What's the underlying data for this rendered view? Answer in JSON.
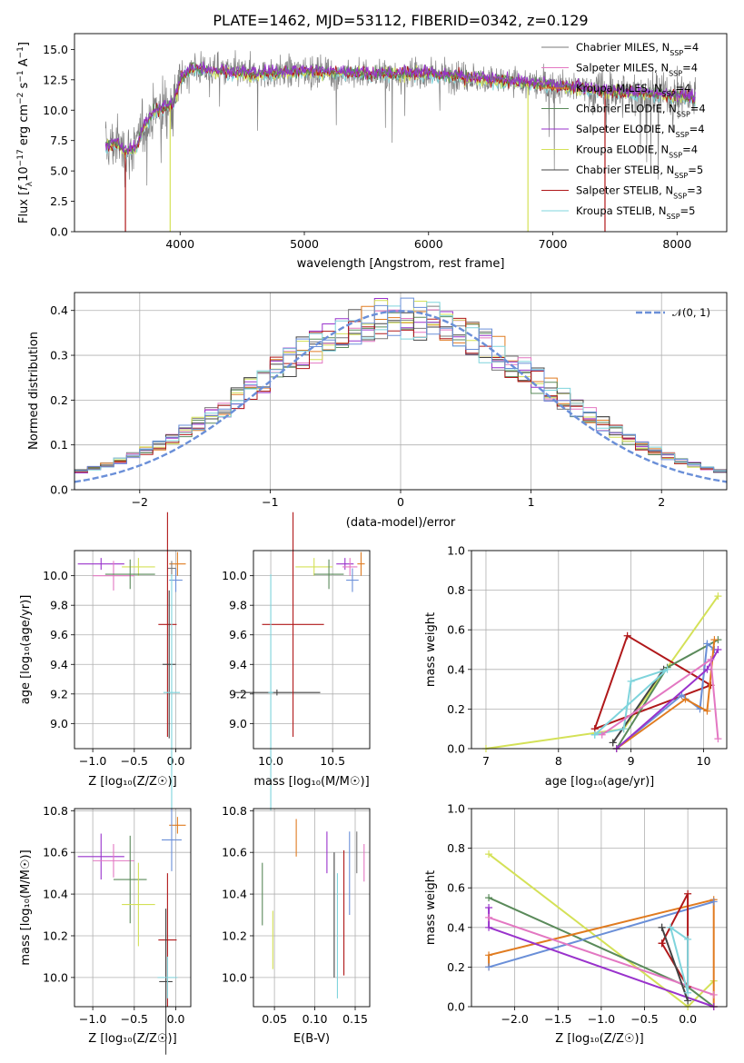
{
  "colors": {
    "chabrier_miles": "#7a7a7a",
    "salpeter_miles": "#e377c2",
    "kroupa_miles": "#e07b20",
    "chabrier_elodie": "#5a8a5a",
    "salpeter_elodie": "#9932cc",
    "kroupa_elodie": "#d4e157",
    "chabrier_stelib": "#444444",
    "salpeter_stelib": "#b0181a",
    "kroupa_stelib": "#7fd4dc",
    "miles_blue": "#6a8fd8",
    "normal": "#6a8fd8"
  },
  "chart_data": [
    {
      "id": "spectrum",
      "type": "line",
      "title": "PLATE=1462, MJD=53112, FIBERID=0342, z=0.129",
      "xlabel": "wavelength [Angstrom, rest frame]",
      "ylabel": "Flux [f_λ10^-17 erg cm^-2 s^-1 A^-1]",
      "xlim": [
        3150,
        8400
      ],
      "ylim": [
        0,
        16.3
      ],
      "xticks": [
        "4000",
        "5000",
        "6000",
        "7000",
        "8000"
      ],
      "yticks": [
        "0.0",
        "2.5",
        "5.0",
        "7.5",
        "10.0",
        "12.5",
        "15.0"
      ],
      "grid": false,
      "legend_position": "right",
      "series": [
        {
          "name": "Chabrier MILES, N_SSP=4",
          "color_key": "chabrier_miles"
        },
        {
          "name": "Salpeter MILES, N_SSP=4",
          "color_key": "salpeter_miles"
        },
        {
          "name": "Kroupa MILES, N_SSP=4",
          "color_key": "kroupa_miles"
        },
        {
          "name": "Chabrier ELODIE, N_SSP=4",
          "color_key": "chabrier_elodie"
        },
        {
          "name": "Salpeter ELODIE, N_SSP=4",
          "color_key": "salpeter_elodie"
        },
        {
          "name": "Kroupa ELODIE, N_SSP=4",
          "color_key": "kroupa_elodie"
        },
        {
          "name": "Chabrier STELIB, N_SSP=5",
          "color_key": "chabrier_stelib"
        },
        {
          "name": "Salpeter STELIB, N_SSP=3",
          "color_key": "salpeter_stelib"
        },
        {
          "name": "Kroupa STELIB, N_SSP=5",
          "color_key": "kroupa_stelib"
        }
      ],
      "continuum_knots": {
        "x": [
          3400,
          3500,
          3550,
          3650,
          3700,
          3800,
          3950,
          4000,
          4100,
          4300,
          4600,
          5000,
          5500,
          6000,
          6500,
          7000,
          7500,
          8000,
          8150
        ],
        "y": [
          7.0,
          7.3,
          6.5,
          7.0,
          8.5,
          10.0,
          10.5,
          12.5,
          13.5,
          13.2,
          13.0,
          13.2,
          13.0,
          13.0,
          12.5,
          12.0,
          11.5,
          11.2,
          11.0
        ]
      }
    },
    {
      "id": "residuals",
      "type": "bar",
      "xlabel": "(data-model)/error",
      "ylabel": "Normed distribution",
      "xlim": [
        -2.5,
        2.5
      ],
      "ylim": [
        0,
        0.44
      ],
      "xticks": [
        "−2",
        "−1",
        "0",
        "1",
        "2"
      ],
      "yticks": [
        "0.0",
        "0.1",
        "0.2",
        "0.3",
        "0.4"
      ],
      "grid": true,
      "legend_position": "top-right",
      "legend": "𝒩(0, 1)",
      "bin_width": 0.1,
      "reference_curve": "gaussian mean 0 sigma 1, peak 0.399"
    },
    {
      "id": "age_vs_Z",
      "type": "scatter",
      "xlabel": "Z [log10(Z/Z☉)]",
      "ylabel": "age [log10(age/yr)]",
      "xlim": [
        -1.22,
        0.18
      ],
      "ylim": [
        8.83,
        10.17
      ],
      "xticks": [
        "−1.0",
        "−0.5",
        "0.0"
      ],
      "yticks": [
        "9.0",
        "9.2",
        "9.4",
        "9.6",
        "9.8",
        "10.0"
      ],
      "grid": true,
      "points": [
        {
          "c": "salpeter_elodie",
          "x": -0.9,
          "xe": 0.28,
          "y": 10.08,
          "ye": 0.04
        },
        {
          "c": "salpeter_miles",
          "x": -0.75,
          "xe": 0.25,
          "y": 10.0,
          "ye": 0.1
        },
        {
          "c": "kroupa_elodie",
          "x": -0.45,
          "xe": 0.2,
          "y": 10.06,
          "ye": 0.06
        },
        {
          "c": "chabrier_elodie",
          "x": -0.55,
          "xe": 0.3,
          "y": 10.01,
          "ye": 0.1
        },
        {
          "c": "kroupa_miles",
          "x": 0.02,
          "xe": 0.1,
          "y": 10.08,
          "ye": 0.08
        },
        {
          "c": "miles_blue",
          "x": 0.0,
          "xe": 0.08,
          "y": 9.97,
          "ye": 0.08
        },
        {
          "c": "chabrier_miles",
          "x": -0.05,
          "xe": 0.05,
          "y": 10.05,
          "ye": 0.05
        },
        {
          "c": "salpeter_stelib",
          "x": -0.1,
          "xe": 0.11,
          "y": 9.67,
          "ye": 0.76
        },
        {
          "c": "chabrier_stelib",
          "x": -0.08,
          "xe": 0.08,
          "y": 9.4,
          "ye": 0.5
        },
        {
          "c": "kroupa_stelib",
          "x": -0.05,
          "xe": 0.1,
          "y": 9.21,
          "ye": 0.8
        }
      ]
    },
    {
      "id": "age_vs_mass",
      "type": "scatter",
      "xlabel": "mass [log10(M/M☉)]",
      "xlim": [
        9.86,
        10.8
      ],
      "ylim": [
        8.83,
        10.17
      ],
      "xticks": [
        "10.0",
        "10.5"
      ],
      "yticks": [
        "9.0",
        "9.2",
        "9.4",
        "9.6",
        "9.8",
        "10.0"
      ],
      "grid": true,
      "points": [
        {
          "c": "kroupa_elodie",
          "x": 10.35,
          "xe": 0.15,
          "y": 10.06,
          "ye": 0.06
        },
        {
          "c": "chabrier_elodie",
          "x": 10.47,
          "xe": 0.12,
          "y": 10.01,
          "ye": 0.1
        },
        {
          "c": "salpeter_elodie",
          "x": 10.6,
          "xe": 0.07,
          "y": 10.08,
          "ye": 0.04
        },
        {
          "c": "salpeter_miles",
          "x": 10.64,
          "xe": 0.06,
          "y": 10.06,
          "ye": 0.06
        },
        {
          "c": "kroupa_miles",
          "x": 10.73,
          "xe": 0.03,
          "y": 10.08,
          "ye": 0.08
        },
        {
          "c": "miles_blue",
          "x": 10.66,
          "xe": 0.05,
          "y": 9.97,
          "ye": 0.08
        },
        {
          "c": "chabrier_stelib",
          "x": 10.05,
          "xe": 0.35,
          "y": 9.21,
          "ye": 0.02
        },
        {
          "c": "salpeter_stelib",
          "x": 10.18,
          "xe": 0.25,
          "y": 9.67,
          "ye": 0.76
        },
        {
          "c": "kroupa_stelib",
          "x": 10.0,
          "xe": 0.02,
          "y": 9.21,
          "ye": 0.8
        }
      ]
    },
    {
      "id": "massweight_vs_age",
      "type": "line",
      "xlabel": "age [log10(age/yr)]",
      "ylabel": "mass weight",
      "xlim": [
        6.8,
        10.32
      ],
      "ylim": [
        0,
        1.0
      ],
      "xticks": [
        "7",
        "8",
        "9",
        "10"
      ],
      "yticks": [
        "0.0",
        "0.2",
        "0.4",
        "0.6",
        "0.8",
        "1.0"
      ],
      "grid": true,
      "series": [
        {
          "c": "kroupa_elodie",
          "x": [
            7.0,
            8.9,
            10.2
          ],
          "y": [
            0.0,
            0.1,
            0.77
          ]
        },
        {
          "c": "salpeter_stelib",
          "x": [
            8.5,
            8.95,
            10.1,
            8.5
          ],
          "y": [
            0.1,
            0.57,
            0.32,
            0.1
          ]
        },
        {
          "c": "chabrier_elodie",
          "x": [
            8.8,
            9.5,
            10.2
          ],
          "y": [
            0.0,
            0.41,
            0.55
          ]
        },
        {
          "c": "chabrier_stelib",
          "x": [
            8.75,
            9.45,
            8.75
          ],
          "y": [
            0.03,
            0.4,
            0.03
          ]
        },
        {
          "c": "kroupa_stelib",
          "x": [
            8.5,
            8.9,
            9.0,
            9.5,
            8.5
          ],
          "y": [
            0.07,
            0.1,
            0.34,
            0.4,
            0.07
          ]
        },
        {
          "c": "miles_blue",
          "x": [
            8.8,
            9.7,
            9.95,
            10.05,
            10.15
          ],
          "y": [
            0.0,
            0.27,
            0.2,
            0.53,
            0.5
          ]
        },
        {
          "c": "kroupa_miles",
          "x": [
            8.8,
            9.75,
            10.05,
            10.15
          ],
          "y": [
            0.0,
            0.25,
            0.19,
            0.55
          ]
        },
        {
          "c": "salpeter_elodie",
          "x": [
            8.8,
            10.05,
            10.2
          ],
          "y": [
            0.0,
            0.4,
            0.5
          ]
        },
        {
          "c": "salpeter_miles",
          "x": [
            8.6,
            10.1,
            10.2
          ],
          "y": [
            0.07,
            0.45,
            0.05
          ]
        }
      ]
    },
    {
      "id": "mass_vs_Z",
      "type": "scatter",
      "xlabel": "Z [log10(Z/Z☉)]",
      "ylabel": "mass [log10(M/M☉)]",
      "xlim": [
        -1.22,
        0.18
      ],
      "ylim": [
        9.86,
        10.81
      ],
      "xticks": [
        "−1.0",
        "−0.5",
        "0.0"
      ],
      "yticks": [
        "10.0",
        "10.2",
        "10.4",
        "10.6",
        "10.8"
      ],
      "grid": true,
      "points": [
        {
          "c": "salpeter_elodie",
          "x": -0.9,
          "xe": 0.28,
          "y": 10.58,
          "ye": 0.11
        },
        {
          "c": "salpeter_miles",
          "x": -0.75,
          "xe": 0.25,
          "y": 10.56,
          "ye": 0.08
        },
        {
          "c": "chabrier_elodie",
          "x": -0.55,
          "xe": 0.2,
          "y": 10.47,
          "ye": 0.21
        },
        {
          "c": "kroupa_elodie",
          "x": -0.45,
          "xe": 0.2,
          "y": 10.35,
          "ye": 0.2
        },
        {
          "c": "kroupa_miles",
          "x": 0.02,
          "xe": 0.1,
          "y": 10.73,
          "ye": 0.04
        },
        {
          "c": "miles_blue",
          "x": -0.05,
          "xe": 0.12,
          "y": 10.66,
          "ye": 0.15
        },
        {
          "c": "salpeter_stelib",
          "x": -0.1,
          "xe": 0.11,
          "y": 10.18,
          "ye": 0.32
        },
        {
          "c": "chabrier_stelib",
          "x": -0.12,
          "xe": 0.08,
          "y": 9.98,
          "ye": 0.35
        },
        {
          "c": "kroupa_stelib",
          "x": -0.1,
          "xe": 0.12,
          "y": 10.0,
          "ye": 0.1
        }
      ]
    },
    {
      "id": "mass_vs_ebv",
      "type": "scatter",
      "xlabel": "E(B-V)",
      "xlim": [
        0.024,
        0.168
      ],
      "ylim": [
        9.86,
        10.81
      ],
      "xticks": [
        "0.05",
        "0.10",
        "0.15"
      ],
      "yticks": [
        "10.0",
        "10.2",
        "10.4",
        "10.6",
        "10.8"
      ],
      "grid": true,
      "points": [
        {
          "c": "chabrier_elodie",
          "x": 0.035,
          "xe": 0,
          "y": 10.4,
          "ye": 0.15
        },
        {
          "c": "kroupa_elodie",
          "x": 0.048,
          "xe": 0,
          "y": 10.18,
          "ye": 0.14
        },
        {
          "c": "kroupa_miles",
          "x": 0.077,
          "xe": 0,
          "y": 10.67,
          "ye": 0.09
        },
        {
          "c": "salpeter_elodie",
          "x": 0.115,
          "xe": 0,
          "y": 10.6,
          "ye": 0.1
        },
        {
          "c": "chabrier_stelib",
          "x": 0.124,
          "xe": 0,
          "y": 10.3,
          "ye": 0.3
        },
        {
          "c": "kroupa_stelib",
          "x": 0.128,
          "xe": 0,
          "y": 10.2,
          "ye": 0.3
        },
        {
          "c": "salpeter_stelib",
          "x": 0.136,
          "xe": 0,
          "y": 10.31,
          "ye": 0.3
        },
        {
          "c": "miles_blue",
          "x": 0.143,
          "xe": 0,
          "y": 10.5,
          "ye": 0.2
        },
        {
          "c": "chabrier_miles",
          "x": 0.152,
          "xe": 0,
          "y": 10.6,
          "ye": 0.1
        },
        {
          "c": "salpeter_miles",
          "x": 0.161,
          "xe": 0,
          "y": 10.55,
          "ye": 0.09
        }
      ]
    },
    {
      "id": "massweight_vs_Z",
      "type": "line",
      "xlabel": "Z [log10(Z/Z☉)]",
      "ylabel": "mass weight",
      "xlim": [
        -2.5,
        0.45
      ],
      "ylim": [
        0,
        1.0
      ],
      "xticks": [
        "−2.0",
        "−1.5",
        "−1.0",
        "−0.5",
        "0.0"
      ],
      "yticks": [
        "0.0",
        "0.2",
        "0.4",
        "0.6",
        "0.8",
        "1.0"
      ],
      "grid": true,
      "series": [
        {
          "c": "kroupa_elodie",
          "x": [
            -2.3,
            0.0,
            0.3
          ],
          "y": [
            0.77,
            0.0,
            0.13
          ]
        },
        {
          "c": "chabrier_elodie",
          "x": [
            -2.3,
            0.0,
            0.3
          ],
          "y": [
            0.55,
            0.1,
            0.0
          ]
        },
        {
          "c": "kroupa_miles",
          "x": [
            -2.3,
            -2.3,
            0.3,
            0.3
          ],
          "y": [
            0.2,
            0.26,
            0.54,
            0.0
          ]
        },
        {
          "c": "miles_blue",
          "x": [
            -2.3,
            0.3
          ],
          "y": [
            0.2,
            0.53
          ]
        },
        {
          "c": "salpeter_elodie",
          "x": [
            -2.3,
            -2.3,
            0.3
          ],
          "y": [
            0.5,
            0.4,
            0.0
          ]
        },
        {
          "c": "salpeter_miles",
          "x": [
            -2.3,
            0.3
          ],
          "y": [
            0.45,
            0.06
          ]
        },
        {
          "c": "salpeter_stelib",
          "x": [
            -0.3,
            0.0,
            0.0,
            -0.3
          ],
          "y": [
            0.32,
            0.57,
            0.1,
            0.32
          ]
        },
        {
          "c": "chabrier_stelib",
          "x": [
            -0.3,
            0.0,
            -0.3
          ],
          "y": [
            0.4,
            0.03,
            0.4
          ]
        },
        {
          "c": "kroupa_stelib",
          "x": [
            -0.2,
            0.0,
            0.0,
            -0.2
          ],
          "y": [
            0.4,
            0.34,
            0.07,
            0.4
          ]
        }
      ]
    }
  ]
}
